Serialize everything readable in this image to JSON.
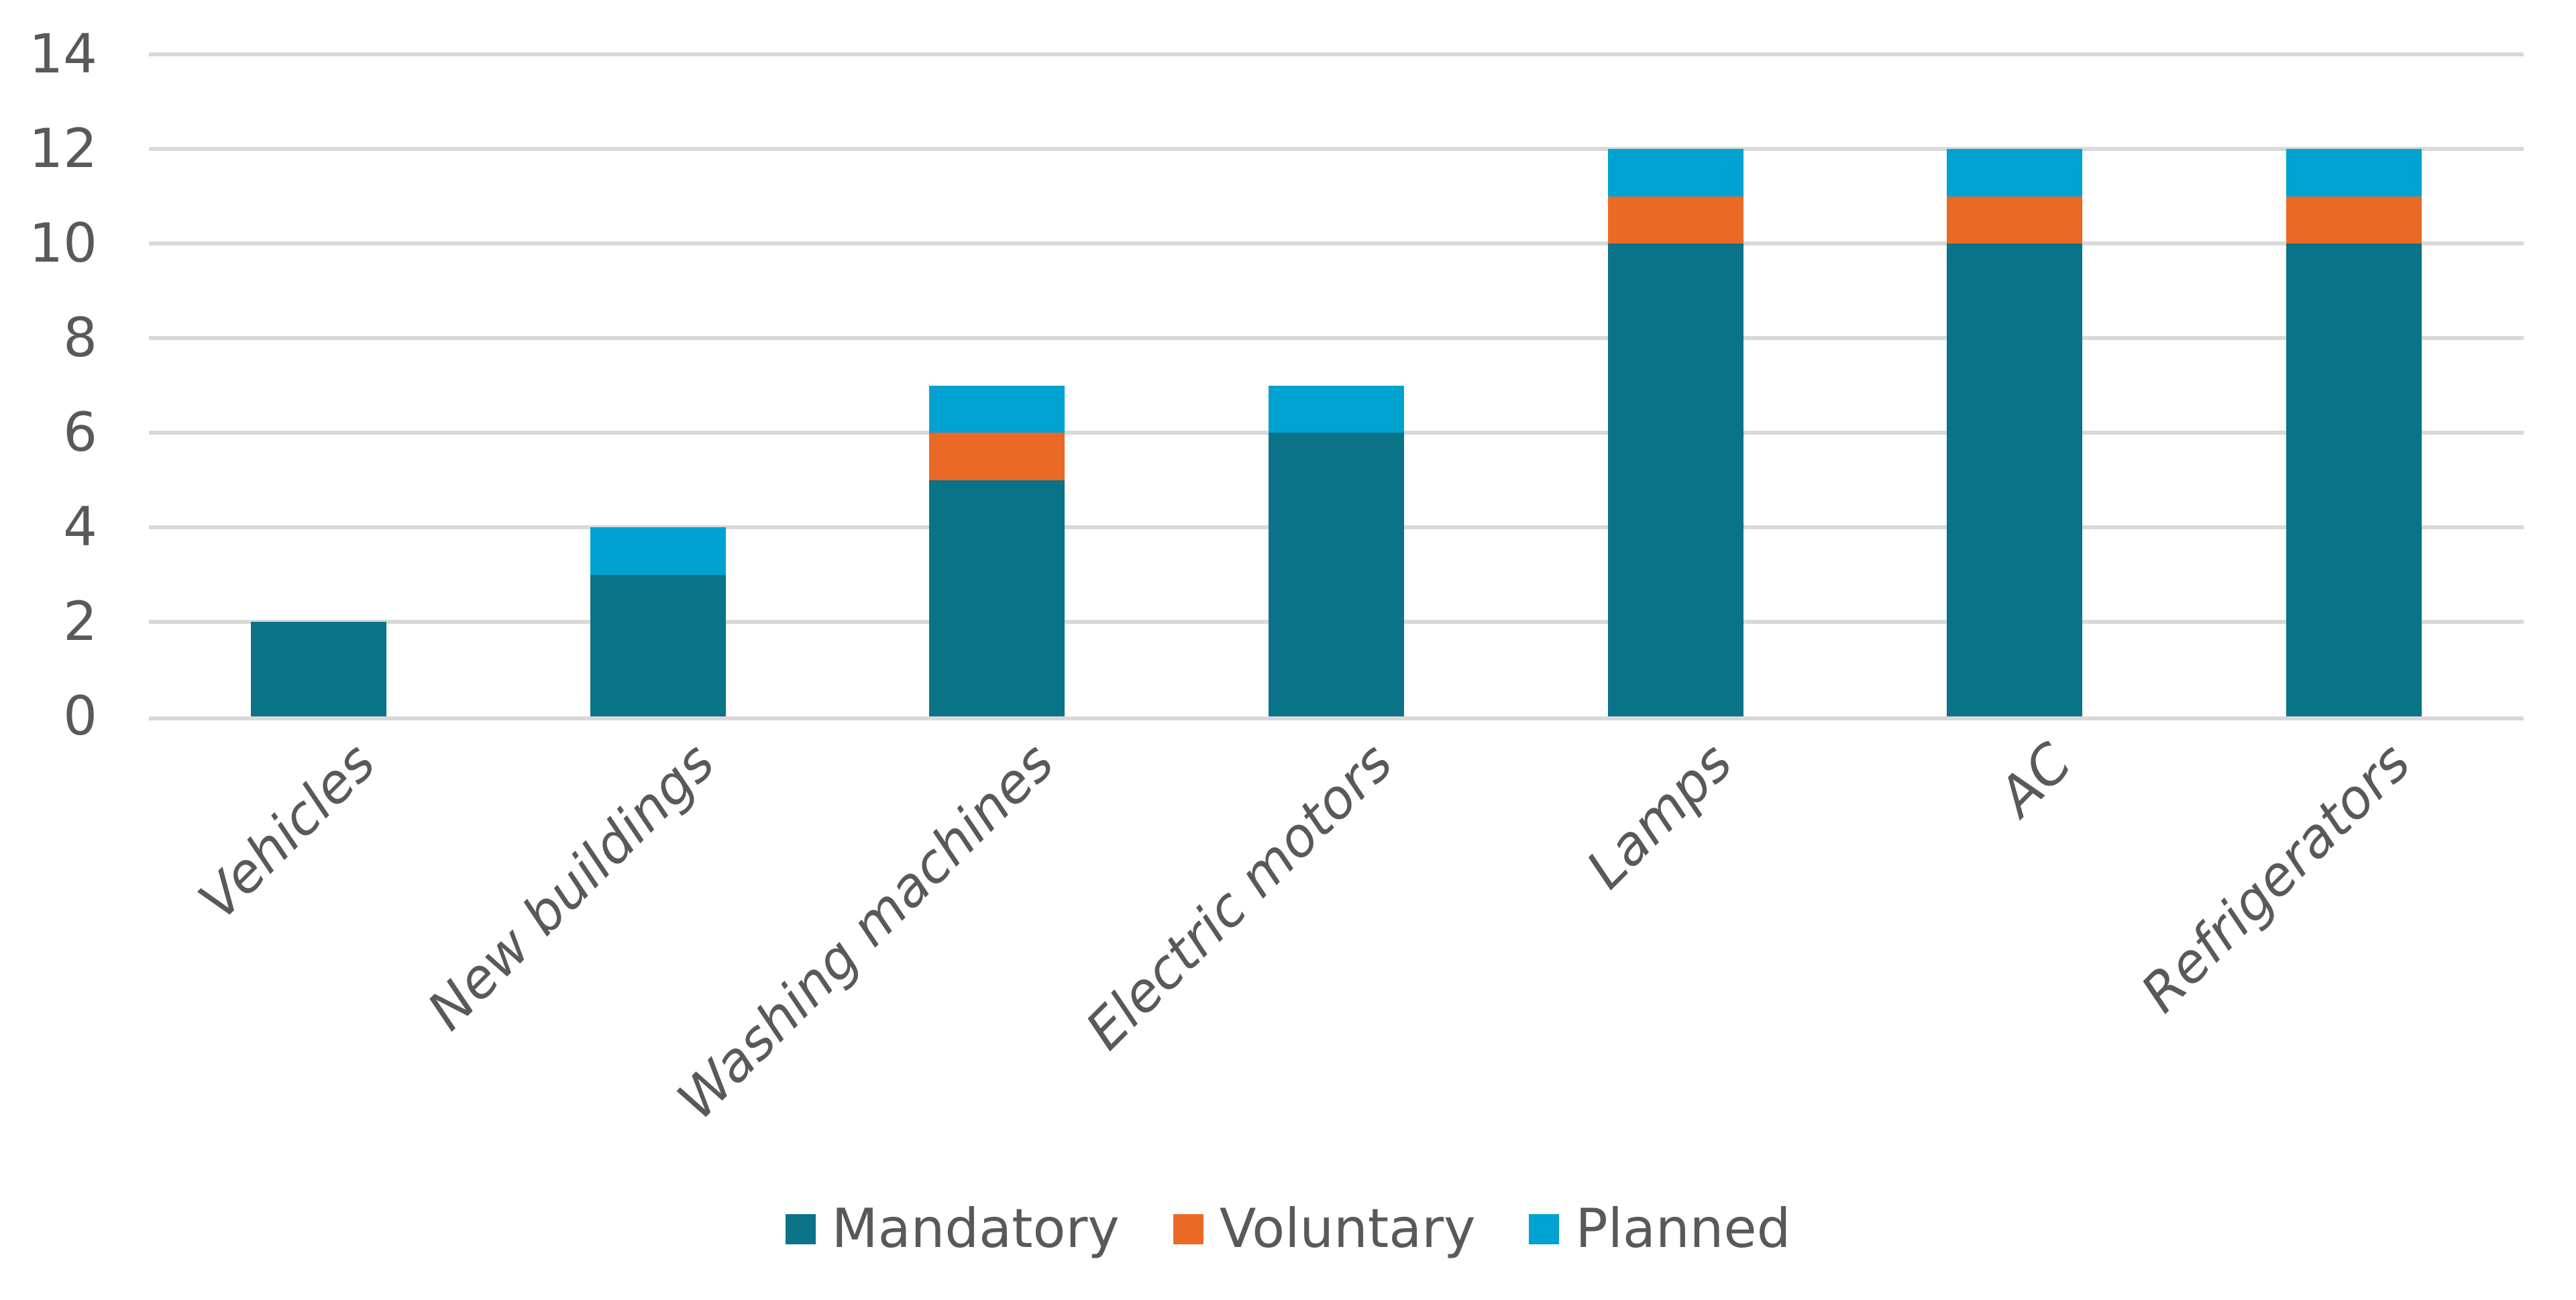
{
  "chart_data": {
    "type": "bar",
    "stacked": true,
    "title": "",
    "xlabel": "",
    "ylabel": "",
    "categories": [
      "Vehicles",
      "New buildings",
      "Washing machines",
      "Electric motors",
      "Lamps",
      "AC",
      "Refrigerators"
    ],
    "series": [
      {
        "name": "Mandatory",
        "color": "#0A7387",
        "values": [
          2,
          3,
          5,
          6,
          10,
          10,
          10
        ]
      },
      {
        "name": "Voluntary",
        "color": "#EB6926",
        "values": [
          0,
          0,
          1,
          0,
          1,
          1,
          1
        ]
      },
      {
        "name": "Planned",
        "color": "#00A2D1",
        "values": [
          0,
          1,
          1,
          1,
          1,
          1,
          1
        ]
      }
    ],
    "totals": [
      2,
      4,
      7,
      7,
      12,
      12,
      12
    ],
    "y_axis": {
      "min": 0,
      "max": 14,
      "step": 2,
      "tick_labels": [
        "0",
        "2",
        "4",
        "6",
        "8",
        "10",
        "12",
        "14"
      ]
    },
    "grid": true,
    "gridline_color": "#d9d9d9",
    "text_color": "#595959",
    "background_color": "#ffffff",
    "legend_position": "bottom",
    "legend_labels": [
      "Mandatory",
      "Voluntary",
      "Planned"
    ]
  }
}
